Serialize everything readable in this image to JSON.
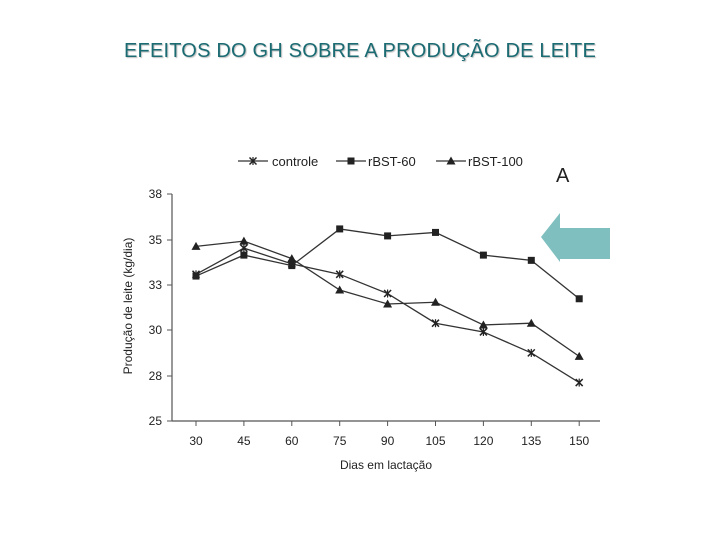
{
  "slide": {
    "title": "EFEITOS DO GH SOBRE A PRODUÇÃO DE LEITE"
  },
  "chart_data": {
    "type": "line",
    "panel_label": "A",
    "xlabel": "Dias em lactação",
    "ylabel": "Produção de leite (kg/dia)",
    "categories": [
      "30",
      "45",
      "60",
      "75",
      "90",
      "105",
      "120",
      "135",
      "150"
    ],
    "y_ticks": [
      "38",
      "35",
      "33",
      "30",
      "28",
      "25"
    ],
    "ylim": [
      25,
      38
    ],
    "grid": false,
    "legend_position": "top",
    "series": [
      {
        "name": "controle",
        "marker": "x",
        "values": [
          33.4,
          34.9,
          34.0,
          33.4,
          32.3,
          30.6,
          30.1,
          28.9,
          27.2
        ]
      },
      {
        "name": "rBST-60",
        "marker": "square",
        "values": [
          33.3,
          34.5,
          33.9,
          36.0,
          35.6,
          35.8,
          34.5,
          34.2,
          32.0
        ]
      },
      {
        "name": "rBST-100",
        "marker": "triangle",
        "values": [
          35.0,
          35.3,
          34.3,
          32.5,
          31.7,
          31.8,
          30.5,
          30.6,
          28.7
        ]
      }
    ],
    "annotation": {
      "kind": "arrow-left",
      "color": "#7fbfbf"
    }
  }
}
